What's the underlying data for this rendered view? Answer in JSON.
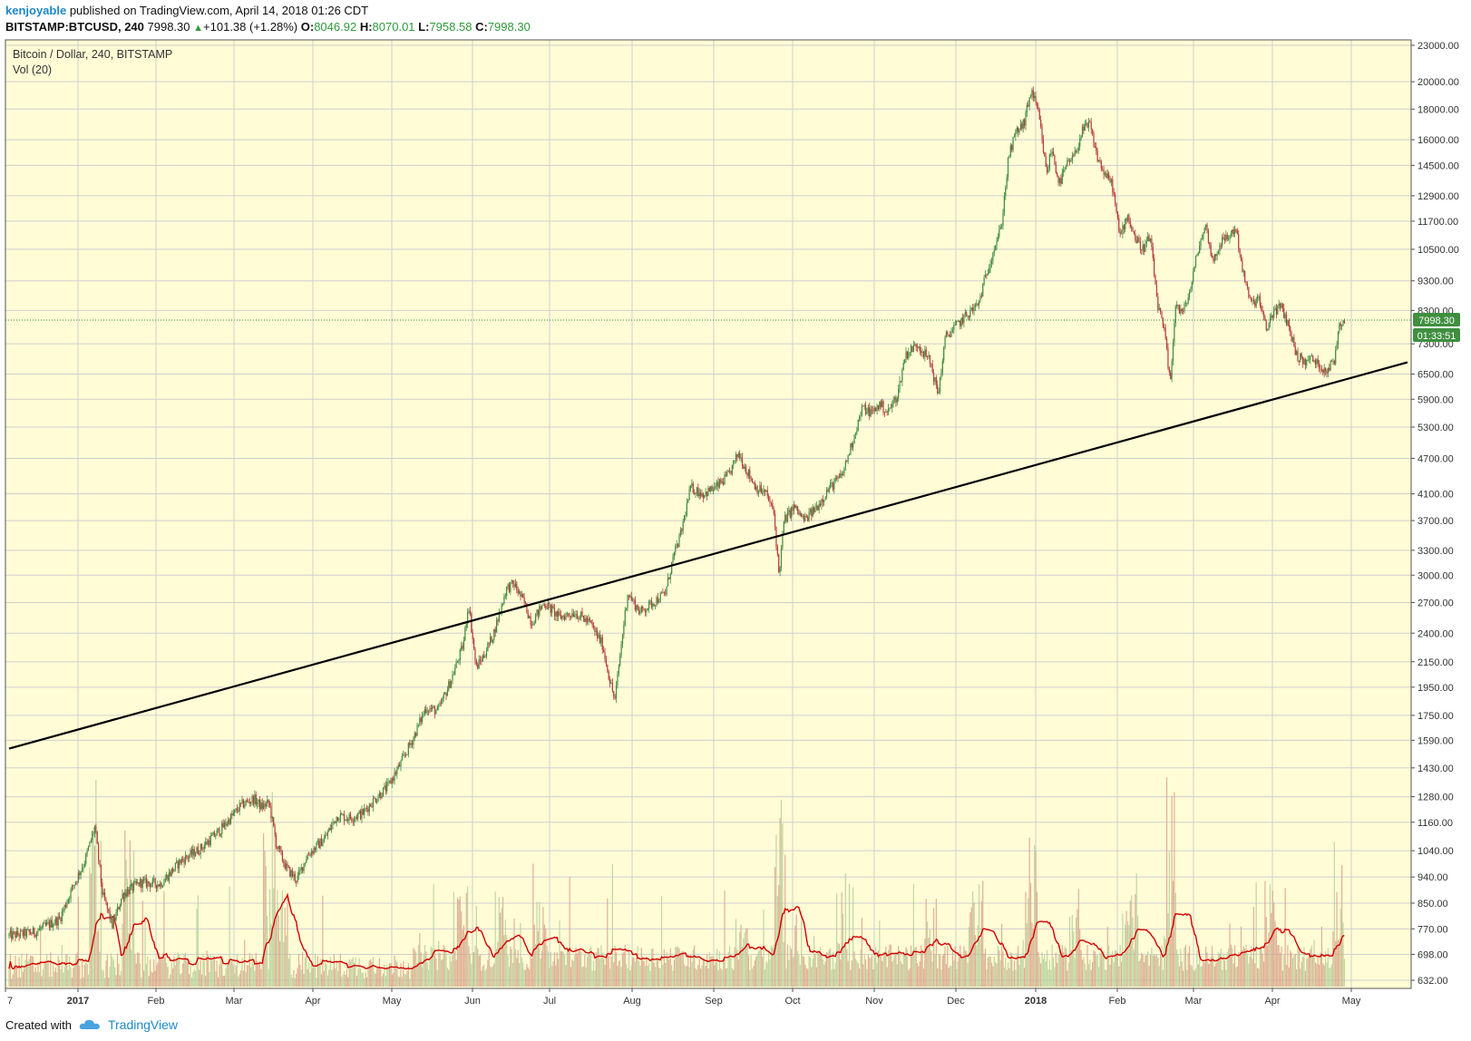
{
  "header": {
    "author": "kenjoyable",
    "published": "published on TradingView.com, April 14, 2018 01:26 CDT",
    "symbol": "BITSTAMP:BTCUSD, 240",
    "last": "7998.30",
    "change": "+101.38 (+1.28%)",
    "o_label": "O:",
    "o_value": "8046.92",
    "h_label": "H:",
    "h_value": "8070.01",
    "l_label": "L:",
    "l_value": "7958.58",
    "c_label": "C:",
    "c_value": "7998.30"
  },
  "legend": {
    "series_name": "Bitcoin / Dollar, 240, BITSTAMP",
    "volume_name": "Vol (20)"
  },
  "price_badge": "7998.30",
  "countdown_badge": "01:33:51",
  "footer": {
    "created_with": "Created with",
    "brand": "TradingView"
  },
  "colors": {
    "background": "#fffcd6",
    "up": "#3f8a3f",
    "down": "#b33b3b",
    "grid": "#cfcfcf",
    "trendline": "#000000",
    "vol_ma": "#d40000",
    "badge": "#3f8f3f"
  },
  "chart_data": {
    "type": "candlestick",
    "title": "Bitcoin / Dollar, 240, BITSTAMP",
    "y_scale": "log",
    "ylim": [
      632,
      23000
    ],
    "y_ticks": [
      "23000.00",
      "20000.00",
      "18000.00",
      "16000.00",
      "14500.00",
      "12900.00",
      "11700.00",
      "10500.00",
      "9300.00",
      "8300.00",
      "7300.00",
      "6500.00",
      "5900.00",
      "5300.00",
      "4700.00",
      "4100.00",
      "3700.00",
      "3300.00",
      "3000.00",
      "2700.00",
      "2400.00",
      "2150.00",
      "1950.00",
      "1750.00",
      "1590.00",
      "1430.00",
      "1280.00",
      "1160.00",
      "1040.00",
      "940.00",
      "850.00",
      "770.00",
      "698.00",
      "632.00"
    ],
    "x_ticks": [
      "7",
      "2017",
      "Feb",
      "Mar",
      "Apr",
      "May",
      "Jun",
      "Jul",
      "Aug",
      "Sep",
      "Oct",
      "Nov",
      "Dec",
      "2018",
      "Feb",
      "Mar",
      "Apr",
      "May"
    ],
    "bold_x_ticks": [
      "2017",
      "2018"
    ],
    "price_path": [
      {
        "t": 0,
        "v": 750
      },
      {
        "t": 10,
        "v": 760
      },
      {
        "t": 20,
        "v": 800
      },
      {
        "t": 25,
        "v": 900
      },
      {
        "t": 30,
        "v": 1000
      },
      {
        "t": 34,
        "v": 1140
      },
      {
        "t": 37,
        "v": 880
      },
      {
        "t": 41,
        "v": 780
      },
      {
        "t": 45,
        "v": 880
      },
      {
        "t": 52,
        "v": 920
      },
      {
        "t": 60,
        "v": 915
      },
      {
        "t": 68,
        "v": 1000
      },
      {
        "t": 76,
        "v": 1050
      },
      {
        "t": 84,
        "v": 1130
      },
      {
        "t": 92,
        "v": 1240
      },
      {
        "t": 97,
        "v": 1270
      },
      {
        "t": 100,
        "v": 1230
      },
      {
        "t": 103,
        "v": 1250
      },
      {
        "t": 106,
        "v": 1060
      },
      {
        "t": 110,
        "v": 970
      },
      {
        "t": 114,
        "v": 930
      },
      {
        "t": 118,
        "v": 1020
      },
      {
        "t": 125,
        "v": 1090
      },
      {
        "t": 130,
        "v": 1190
      },
      {
        "t": 135,
        "v": 1180
      },
      {
        "t": 140,
        "v": 1200
      },
      {
        "t": 145,
        "v": 1270
      },
      {
        "t": 150,
        "v": 1330
      },
      {
        "t": 155,
        "v": 1450
      },
      {
        "t": 160,
        "v": 1600
      },
      {
        "t": 165,
        "v": 1800
      },
      {
        "t": 170,
        "v": 1780
      },
      {
        "t": 175,
        "v": 2000
      },
      {
        "t": 180,
        "v": 2300
      },
      {
        "t": 182,
        "v": 2700
      },
      {
        "t": 185,
        "v": 2100
      },
      {
        "t": 188,
        "v": 2200
      },
      {
        "t": 192,
        "v": 2400
      },
      {
        "t": 197,
        "v": 2850
      },
      {
        "t": 200,
        "v": 2900
      },
      {
        "t": 204,
        "v": 2700
      },
      {
        "t": 207,
        "v": 2500
      },
      {
        "t": 212,
        "v": 2700
      },
      {
        "t": 218,
        "v": 2550
      },
      {
        "t": 224,
        "v": 2600
      },
      {
        "t": 230,
        "v": 2500
      },
      {
        "t": 235,
        "v": 2300
      },
      {
        "t": 238,
        "v": 2000
      },
      {
        "t": 240,
        "v": 1850
      },
      {
        "t": 242,
        "v": 2200
      },
      {
        "t": 245,
        "v": 2800
      },
      {
        "t": 250,
        "v": 2600
      },
      {
        "t": 255,
        "v": 2700
      },
      {
        "t": 260,
        "v": 2800
      },
      {
        "t": 263,
        "v": 3200
      },
      {
        "t": 266,
        "v": 3500
      },
      {
        "t": 270,
        "v": 4200
      },
      {
        "t": 275,
        "v": 4100
      },
      {
        "t": 280,
        "v": 4200
      },
      {
        "t": 285,
        "v": 4400
      },
      {
        "t": 289,
        "v": 4800
      },
      {
        "t": 292,
        "v": 4500
      },
      {
        "t": 296,
        "v": 4200
      },
      {
        "t": 300,
        "v": 4100
      },
      {
        "t": 303,
        "v": 3800
      },
      {
        "t": 305,
        "v": 3000
      },
      {
        "t": 307,
        "v": 3700
      },
      {
        "t": 311,
        "v": 3900
      },
      {
        "t": 315,
        "v": 3700
      },
      {
        "t": 320,
        "v": 3900
      },
      {
        "t": 325,
        "v": 4200
      },
      {
        "t": 330,
        "v": 4400
      },
      {
        "t": 334,
        "v": 5000
      },
      {
        "t": 338,
        "v": 5700
      },
      {
        "t": 342,
        "v": 5600
      },
      {
        "t": 345,
        "v": 5800
      },
      {
        "t": 348,
        "v": 5600
      },
      {
        "t": 352,
        "v": 6000
      },
      {
        "t": 355,
        "v": 7000
      },
      {
        "t": 360,
        "v": 7300
      },
      {
        "t": 365,
        "v": 6800
      },
      {
        "t": 368,
        "v": 6000
      },
      {
        "t": 371,
        "v": 7500
      },
      {
        "t": 375,
        "v": 7800
      },
      {
        "t": 380,
        "v": 8200
      },
      {
        "t": 384,
        "v": 8500
      },
      {
        "t": 387,
        "v": 9500
      },
      {
        "t": 390,
        "v": 10500
      },
      {
        "t": 393,
        "v": 11400
      },
      {
        "t": 396,
        "v": 15000
      },
      {
        "t": 399,
        "v": 16500
      },
      {
        "t": 402,
        "v": 17000
      },
      {
        "t": 405,
        "v": 19400
      },
      {
        "t": 408,
        "v": 17500
      },
      {
        "t": 411,
        "v": 14000
      },
      {
        "t": 413,
        "v": 15500
      },
      {
        "t": 416,
        "v": 13500
      },
      {
        "t": 419,
        "v": 14500
      },
      {
        "t": 422,
        "v": 15000
      },
      {
        "t": 425,
        "v": 16500
      },
      {
        "t": 428,
        "v": 17000
      },
      {
        "t": 431,
        "v": 15000
      },
      {
        "t": 434,
        "v": 14000
      },
      {
        "t": 437,
        "v": 13500
      },
      {
        "t": 440,
        "v": 11000
      },
      {
        "t": 443,
        "v": 12000
      },
      {
        "t": 446,
        "v": 11000
      },
      {
        "t": 449,
        "v": 10500
      },
      {
        "t": 452,
        "v": 11000
      },
      {
        "t": 455,
        "v": 8500
      },
      {
        "t": 458,
        "v": 7500
      },
      {
        "t": 460,
        "v": 6200
      },
      {
        "t": 462,
        "v": 8500
      },
      {
        "t": 465,
        "v": 8200
      },
      {
        "t": 468,
        "v": 9000
      },
      {
        "t": 471,
        "v": 10500
      },
      {
        "t": 474,
        "v": 11500
      },
      {
        "t": 477,
        "v": 10000
      },
      {
        "t": 480,
        "v": 10800
      },
      {
        "t": 483,
        "v": 11000
      },
      {
        "t": 486,
        "v": 11400
      },
      {
        "t": 489,
        "v": 9500
      },
      {
        "t": 492,
        "v": 8500
      },
      {
        "t": 495,
        "v": 8700
      },
      {
        "t": 498,
        "v": 7700
      },
      {
        "t": 501,
        "v": 8300
      },
      {
        "t": 504,
        "v": 8400
      },
      {
        "t": 507,
        "v": 7800
      },
      {
        "t": 510,
        "v": 7000
      },
      {
        "t": 513,
        "v": 6800
      },
      {
        "t": 516,
        "v": 6900
      },
      {
        "t": 519,
        "v": 6700
      },
      {
        "t": 522,
        "v": 6600
      },
      {
        "t": 525,
        "v": 6850
      },
      {
        "t": 527,
        "v": 7900
      },
      {
        "t": 529,
        "v": 7998.3
      }
    ],
    "trendline": {
      "start": {
        "t": 0,
        "v": 1540
      },
      "end": {
        "t": 554,
        "v": 6800
      }
    },
    "last_price": 7998.3,
    "volume_series_label": "Vol (20)"
  }
}
